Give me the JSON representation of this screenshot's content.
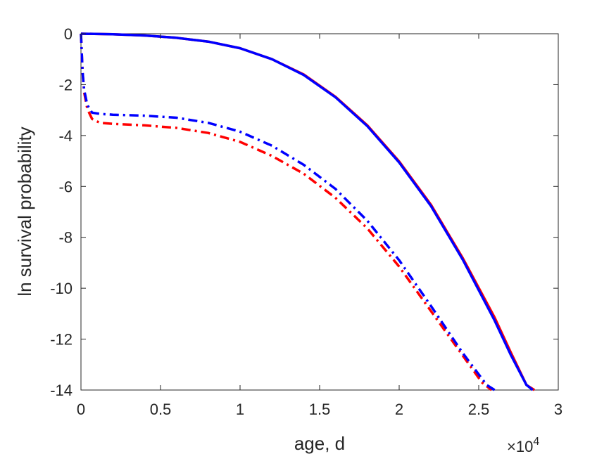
{
  "chart_data": {
    "type": "line",
    "xlabel": "age, d",
    "ylabel": "ln survival probability",
    "x_exponent_label": "×10",
    "x_exponent_power": "4",
    "xlim": [
      0,
      30000
    ],
    "ylim": [
      -14,
      0
    ],
    "x_ticks": [
      0,
      5000,
      10000,
      15000,
      20000,
      25000,
      30000
    ],
    "x_tick_labels": [
      "0",
      "0.5",
      "1",
      "1.5",
      "2",
      "2.5",
      "3"
    ],
    "y_ticks": [
      0,
      -2,
      -4,
      -6,
      -8,
      -10,
      -12,
      -14
    ],
    "y_tick_labels": [
      "0",
      "-2",
      "-4",
      "-6",
      "-8",
      "-10",
      "-12",
      "-14"
    ],
    "grid": false,
    "series": [
      {
        "color": "#ff0000",
        "style": "solid",
        "points": [
          [
            0,
            0
          ],
          [
            2000,
            -0.02
          ],
          [
            4000,
            -0.07
          ],
          [
            6000,
            -0.16
          ],
          [
            8000,
            -0.31
          ],
          [
            10000,
            -0.57
          ],
          [
            12000,
            -1.0
          ],
          [
            14000,
            -1.6
          ],
          [
            16000,
            -2.48
          ],
          [
            18000,
            -3.6
          ],
          [
            20000,
            -5.02
          ],
          [
            22000,
            -6.72
          ],
          [
            24000,
            -8.82
          ],
          [
            26000,
            -11.15
          ],
          [
            27000,
            -12.5
          ],
          [
            28000,
            -13.8
          ],
          [
            28500,
            -14.0
          ]
        ]
      },
      {
        "color": "#0000ff",
        "style": "solid",
        "points": [
          [
            0,
            0
          ],
          [
            2000,
            -0.02
          ],
          [
            4000,
            -0.07
          ],
          [
            6000,
            -0.16
          ],
          [
            8000,
            -0.31
          ],
          [
            10000,
            -0.57
          ],
          [
            12000,
            -1.0
          ],
          [
            14000,
            -1.62
          ],
          [
            16000,
            -2.5
          ],
          [
            18000,
            -3.63
          ],
          [
            20000,
            -5.06
          ],
          [
            22000,
            -6.77
          ],
          [
            24000,
            -8.88
          ],
          [
            26000,
            -11.27
          ],
          [
            27000,
            -12.6
          ],
          [
            28000,
            -13.8
          ],
          [
            28400,
            -14.0
          ]
        ]
      },
      {
        "color": "#ff0000",
        "style": "dashdot",
        "points": [
          [
            0,
            0
          ],
          [
            100,
            -1.5
          ],
          [
            200,
            -2.3
          ],
          [
            400,
            -2.95
          ],
          [
            700,
            -3.35
          ],
          [
            1200,
            -3.5
          ],
          [
            2000,
            -3.54
          ],
          [
            4000,
            -3.6
          ],
          [
            6000,
            -3.7
          ],
          [
            8000,
            -3.9
          ],
          [
            10000,
            -4.25
          ],
          [
            12000,
            -4.8
          ],
          [
            14000,
            -5.5
          ],
          [
            16000,
            -6.45
          ],
          [
            18000,
            -7.65
          ],
          [
            20000,
            -9.15
          ],
          [
            22000,
            -10.9
          ],
          [
            24000,
            -12.65
          ],
          [
            25200,
            -13.7
          ],
          [
            25800,
            -14.0
          ]
        ]
      },
      {
        "color": "#0000ff",
        "style": "dashdot",
        "points": [
          [
            0,
            0
          ],
          [
            100,
            -1.5
          ],
          [
            200,
            -2.2
          ],
          [
            400,
            -2.8
          ],
          [
            700,
            -3.1
          ],
          [
            1200,
            -3.15
          ],
          [
            2000,
            -3.18
          ],
          [
            4000,
            -3.22
          ],
          [
            6000,
            -3.3
          ],
          [
            8000,
            -3.5
          ],
          [
            10000,
            -3.85
          ],
          [
            12000,
            -4.4
          ],
          [
            14000,
            -5.15
          ],
          [
            16000,
            -6.1
          ],
          [
            18000,
            -7.35
          ],
          [
            20000,
            -8.9
          ],
          [
            22000,
            -10.7
          ],
          [
            24000,
            -12.55
          ],
          [
            25500,
            -13.8
          ],
          [
            26000,
            -14.0
          ]
        ]
      }
    ]
  }
}
